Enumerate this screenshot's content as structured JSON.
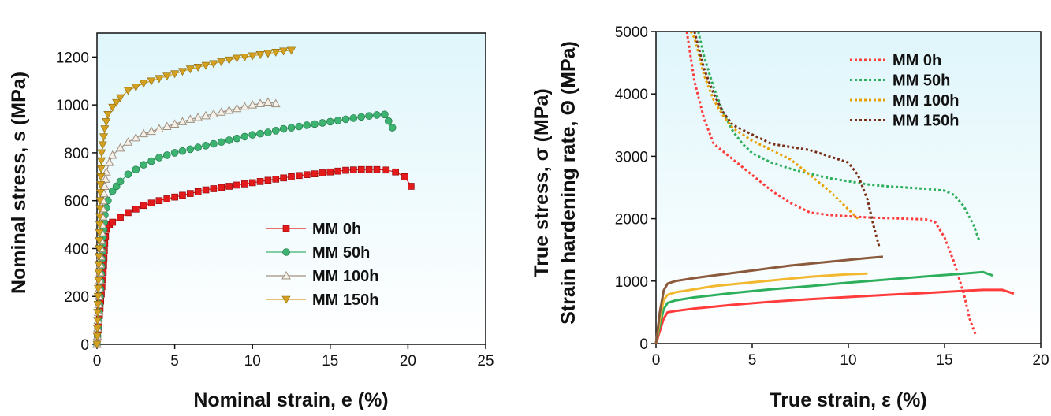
{
  "chart_data": [
    {
      "type": "line",
      "xlabel": "Nominal strain, e (%)",
      "ylabel": "Nominal stress, s (MPa)",
      "xlim": [
        0,
        25
      ],
      "ylim": [
        0,
        1300
      ],
      "xticks": [
        0,
        5,
        10,
        15,
        20,
        25
      ],
      "yticks": [
        0,
        200,
        400,
        600,
        800,
        1000,
        1200
      ],
      "legend_position": "center-right",
      "background": "gradient-lightcyan",
      "series": [
        {
          "name": "MM 0h",
          "color": "#e31a1c",
          "marker": "square",
          "x": [
            0,
            0.2,
            0.4,
            0.5,
            0.6,
            0.8,
            1,
            1.5,
            2,
            3,
            4,
            5,
            6,
            7,
            8,
            9,
            10,
            11,
            12,
            13,
            14,
            15,
            16,
            17,
            18,
            18.6,
            19.2,
            19.8,
            20.2
          ],
          "y": [
            0,
            150,
            300,
            420,
            480,
            500,
            510,
            530,
            550,
            580,
            600,
            615,
            630,
            645,
            655,
            665,
            675,
            685,
            695,
            705,
            712,
            720,
            727,
            730,
            730,
            728,
            720,
            700,
            660
          ]
        },
        {
          "name": "MM 50h",
          "color": "#3cb371",
          "marker": "circle",
          "x": [
            0,
            0.2,
            0.4,
            0.5,
            0.7,
            1,
            1.5,
            2,
            3,
            4,
            5,
            6,
            7,
            8,
            9,
            10,
            11,
            12,
            13,
            14,
            15,
            16,
            17,
            18,
            18.5,
            19
          ],
          "y": [
            0,
            200,
            450,
            540,
            600,
            640,
            680,
            710,
            750,
            780,
            800,
            815,
            830,
            845,
            860,
            875,
            885,
            900,
            910,
            920,
            930,
            940,
            950,
            958,
            960,
            905
          ]
        },
        {
          "name": "MM 100h",
          "color": "#a09080",
          "marker": "triangle-up",
          "x": [
            0,
            0.2,
            0.4,
            0.6,
            0.8,
            1,
            1.5,
            2,
            3,
            4,
            5,
            6,
            7,
            8,
            9,
            10,
            11,
            11.5
          ],
          "y": [
            0,
            300,
            600,
            720,
            760,
            790,
            820,
            845,
            880,
            900,
            920,
            940,
            955,
            970,
            985,
            1000,
            1012,
            1005
          ]
        },
        {
          "name": "MM 150h",
          "color": "#d4a020",
          "marker": "triangle-down",
          "x": [
            0,
            0.1,
            0.2,
            0.3,
            0.5,
            0.7,
            1,
            1.5,
            2,
            3,
            4,
            5,
            6,
            7,
            8,
            9,
            10,
            11,
            12,
            12.5
          ],
          "y": [
            0,
            300,
            600,
            800,
            900,
            960,
            990,
            1030,
            1060,
            1090,
            1110,
            1130,
            1150,
            1165,
            1180,
            1195,
            1205,
            1215,
            1225,
            1228
          ]
        }
      ]
    },
    {
      "type": "line",
      "xlabel": "True strain, ε (%)",
      "ylabel": "True stress, σ (MPa)",
      "ylabel2": "Strain hardening rate, Θ (MPa)",
      "xlim": [
        0,
        20
      ],
      "ylim": [
        0,
        5000
      ],
      "xticks": [
        0,
        5,
        10,
        15,
        20
      ],
      "yticks": [
        0,
        1000,
        2000,
        3000,
        4000,
        5000
      ],
      "legend_position": "top-right",
      "background": "gradient-lightcyan",
      "series": [
        {
          "name": "MM 0h",
          "color": "#ff3b3b",
          "style": "dotted",
          "x": [
            1.6,
            2,
            2.5,
            3,
            4,
            5,
            6,
            7,
            8,
            9,
            10,
            11,
            12,
            13,
            14,
            14.5,
            15,
            15.5,
            16,
            16.3,
            16.6
          ],
          "y": [
            5000,
            4200,
            3600,
            3200,
            2950,
            2700,
            2450,
            2250,
            2100,
            2060,
            2040,
            2020,
            2010,
            2000,
            1990,
            1950,
            1700,
            1300,
            800,
            400,
            150
          ]
        },
        {
          "name": "MM 50h",
          "color": "#2eaf5c",
          "style": "dotted",
          "x": [
            2.2,
            2.5,
            3,
            3.5,
            4,
            4.5,
            5,
            6,
            7,
            8,
            9,
            10,
            11,
            12,
            13,
            14,
            15,
            15.5,
            16,
            16.5,
            16.8
          ],
          "y": [
            5000,
            4600,
            4100,
            3700,
            3400,
            3200,
            3050,
            2900,
            2800,
            2720,
            2650,
            2600,
            2550,
            2520,
            2500,
            2480,
            2450,
            2380,
            2200,
            1900,
            1650
          ]
        },
        {
          "name": "MM 100h",
          "color": "#e8a000",
          "style": "dotted",
          "x": [
            1.8,
            2,
            2.5,
            3,
            3.5,
            4,
            5,
            6,
            7,
            8,
            9,
            10,
            10.5
          ],
          "y": [
            5000,
            4900,
            4300,
            3900,
            3650,
            3450,
            3250,
            3100,
            2950,
            2700,
            2450,
            2150,
            2000
          ]
        },
        {
          "name": "MM 150h",
          "color": "#7a2e18",
          "style": "dotted",
          "x": [
            2,
            2.5,
            3,
            3.5,
            4,
            5,
            6,
            7,
            8,
            9,
            10,
            10.5,
            11,
            11.3,
            11.6
          ],
          "y": [
            5000,
            4400,
            4000,
            3700,
            3500,
            3350,
            3200,
            3150,
            3100,
            3000,
            2900,
            2700,
            2300,
            1900,
            1550
          ]
        },
        {
          "name": "",
          "color": "#ff3b3b",
          "style": "solid",
          "x": [
            0,
            0.2,
            0.4,
            0.6,
            1,
            2,
            4,
            6,
            8,
            10,
            12,
            14,
            16,
            17,
            18,
            18.6
          ],
          "y": [
            0,
            200,
            400,
            500,
            520,
            560,
            620,
            670,
            710,
            745,
            780,
            810,
            845,
            860,
            860,
            800
          ]
        },
        {
          "name": "",
          "color": "#2eaf5c",
          "style": "solid",
          "x": [
            0,
            0.2,
            0.4,
            0.6,
            1,
            2,
            4,
            6,
            8,
            10,
            12,
            14,
            16,
            17,
            17.5
          ],
          "y": [
            0,
            300,
            550,
            650,
            690,
            740,
            810,
            870,
            920,
            975,
            1025,
            1075,
            1120,
            1145,
            1090
          ]
        },
        {
          "name": "",
          "color": "#f2b830",
          "style": "solid",
          "x": [
            0,
            0.2,
            0.4,
            0.6,
            1,
            2,
            3,
            4,
            5,
            6,
            7,
            8,
            9,
            10,
            11
          ],
          "y": [
            0,
            400,
            700,
            780,
            820,
            870,
            920,
            950,
            980,
            1010,
            1040,
            1070,
            1090,
            1110,
            1120
          ]
        },
        {
          "name": "",
          "color": "#8b5a3c",
          "style": "solid",
          "x": [
            0,
            0.2,
            0.4,
            0.6,
            1,
            2,
            3,
            4,
            5,
            6,
            7,
            8,
            9,
            10,
            11,
            11.8
          ],
          "y": [
            0,
            500,
            850,
            960,
            1000,
            1050,
            1090,
            1130,
            1170,
            1210,
            1250,
            1280,
            1310,
            1340,
            1370,
            1390
          ]
        }
      ]
    }
  ]
}
